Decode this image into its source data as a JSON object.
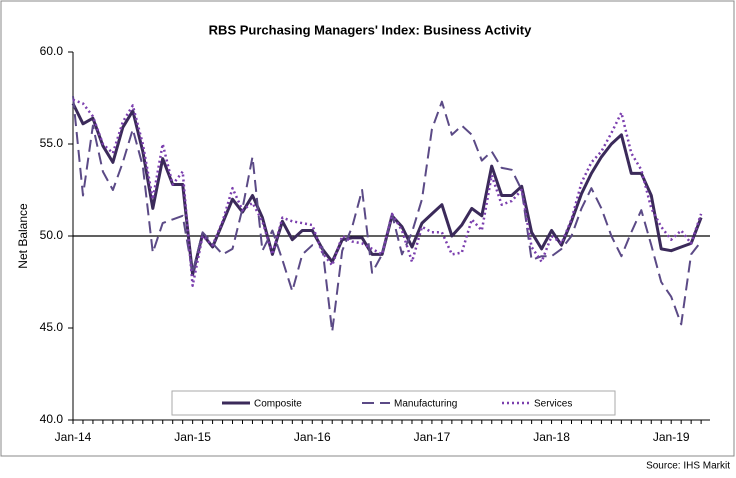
{
  "chart_data": {
    "type": "line",
    "title": "RBS Purchasing Managers' Index: Business Activity",
    "y_label": "Net Balance",
    "source": "Source: IHS Markit",
    "categories": [
      "Jan-14",
      null,
      null,
      null,
      null,
      null,
      null,
      null,
      null,
      null,
      null,
      null,
      "Jan-15",
      null,
      null,
      null,
      null,
      null,
      null,
      null,
      null,
      null,
      null,
      null,
      "Jan-16",
      null,
      null,
      null,
      null,
      null,
      null,
      null,
      null,
      null,
      null,
      null,
      "Jan-17",
      null,
      null,
      null,
      null,
      null,
      null,
      null,
      null,
      null,
      null,
      null,
      "Jan-18",
      null,
      null,
      null,
      null,
      null,
      null,
      null,
      null,
      null,
      null,
      null,
      "Jan-19",
      null,
      null,
      null
    ],
    "series": [
      {
        "name": "Composite",
        "color": "#3b2a5a",
        "style": "solid",
        "values": [
          57.2,
          56.1,
          56.4,
          54.9,
          54.0,
          55.9,
          56.8,
          54.6,
          51.5,
          54.2,
          52.8,
          52.8,
          47.9,
          50.1,
          49.4,
          50.7,
          52.0,
          51.3,
          52.2,
          51.0,
          49.0,
          50.8,
          49.8,
          50.3,
          50.3,
          49.3,
          48.6,
          49.8,
          49.9,
          49.9,
          49.0,
          49.0,
          51.1,
          50.5,
          49.4,
          50.7,
          51.2,
          51.7,
          50.0,
          50.6,
          51.5,
          51.1,
          53.8,
          52.2,
          52.2,
          52.7,
          50.2,
          49.3,
          50.3,
          49.5,
          50.8,
          52.3,
          53.4,
          54.3,
          55.0,
          55.5,
          53.4,
          53.4,
          52.2,
          49.3,
          49.2,
          49.4,
          49.6,
          51.0
        ]
      },
      {
        "name": "Manufacturing",
        "color": "#5b4a86",
        "style": "dashed",
        "values": [
          57.6,
          52.2,
          56.0,
          53.5,
          52.5,
          54.0,
          55.8,
          53.8,
          49.1,
          50.7,
          50.9,
          51.1,
          48.0,
          50.2,
          49.6,
          49.0,
          49.3,
          51.5,
          54.3,
          49.2,
          50.3,
          48.7,
          47.0,
          49.0,
          49.5,
          49.4,
          44.8,
          49.2,
          50.5,
          52.5,
          48.0,
          49.0,
          51.2,
          49.0,
          50.2,
          52.0,
          55.8,
          57.3,
          55.5,
          56.0,
          55.5,
          54.1,
          54.6,
          53.7,
          53.6,
          52.5,
          48.7,
          48.9,
          48.9,
          49.3,
          50.0,
          51.5,
          52.6,
          51.5,
          50.0,
          48.9,
          50.2,
          51.4,
          49.5,
          47.5,
          46.7,
          45.2,
          49.0,
          49.7
        ]
      },
      {
        "name": "Services",
        "color": "#7b3fae",
        "style": "dotted",
        "values": [
          57.4,
          57.2,
          56.5,
          55.0,
          54.5,
          56.2,
          57.1,
          55.0,
          52.0,
          55.0,
          52.8,
          53.5,
          47.3,
          50.0,
          49.5,
          50.8,
          52.6,
          51.4,
          51.8,
          50.8,
          49.0,
          51.0,
          50.8,
          50.7,
          50.6,
          49.1,
          48.4,
          50.0,
          49.7,
          49.6,
          49.3,
          49.0,
          51.2,
          50.3,
          48.6,
          50.5,
          50.2,
          50.2,
          49.0,
          49.1,
          50.9,
          50.3,
          53.3,
          51.7,
          51.9,
          52.5,
          49.4,
          48.6,
          50.0,
          49.6,
          50.9,
          52.9,
          54.0,
          54.6,
          55.6,
          56.7,
          54.5,
          53.6,
          51.5,
          50.5,
          49.8,
          50.3,
          49.6,
          51.2
        ]
      }
    ],
    "ylim": [
      40,
      60
    ],
    "yticks": [
      {
        "value": 40,
        "label": "40.0"
      },
      {
        "value": 45,
        "label": "45.0"
      },
      {
        "value": 50,
        "label": "50.0"
      },
      {
        "value": 55,
        "label": "55.0"
      },
      {
        "value": 60,
        "label": "60.0"
      }
    ],
    "reference_line": 50,
    "legend": "bottom"
  }
}
